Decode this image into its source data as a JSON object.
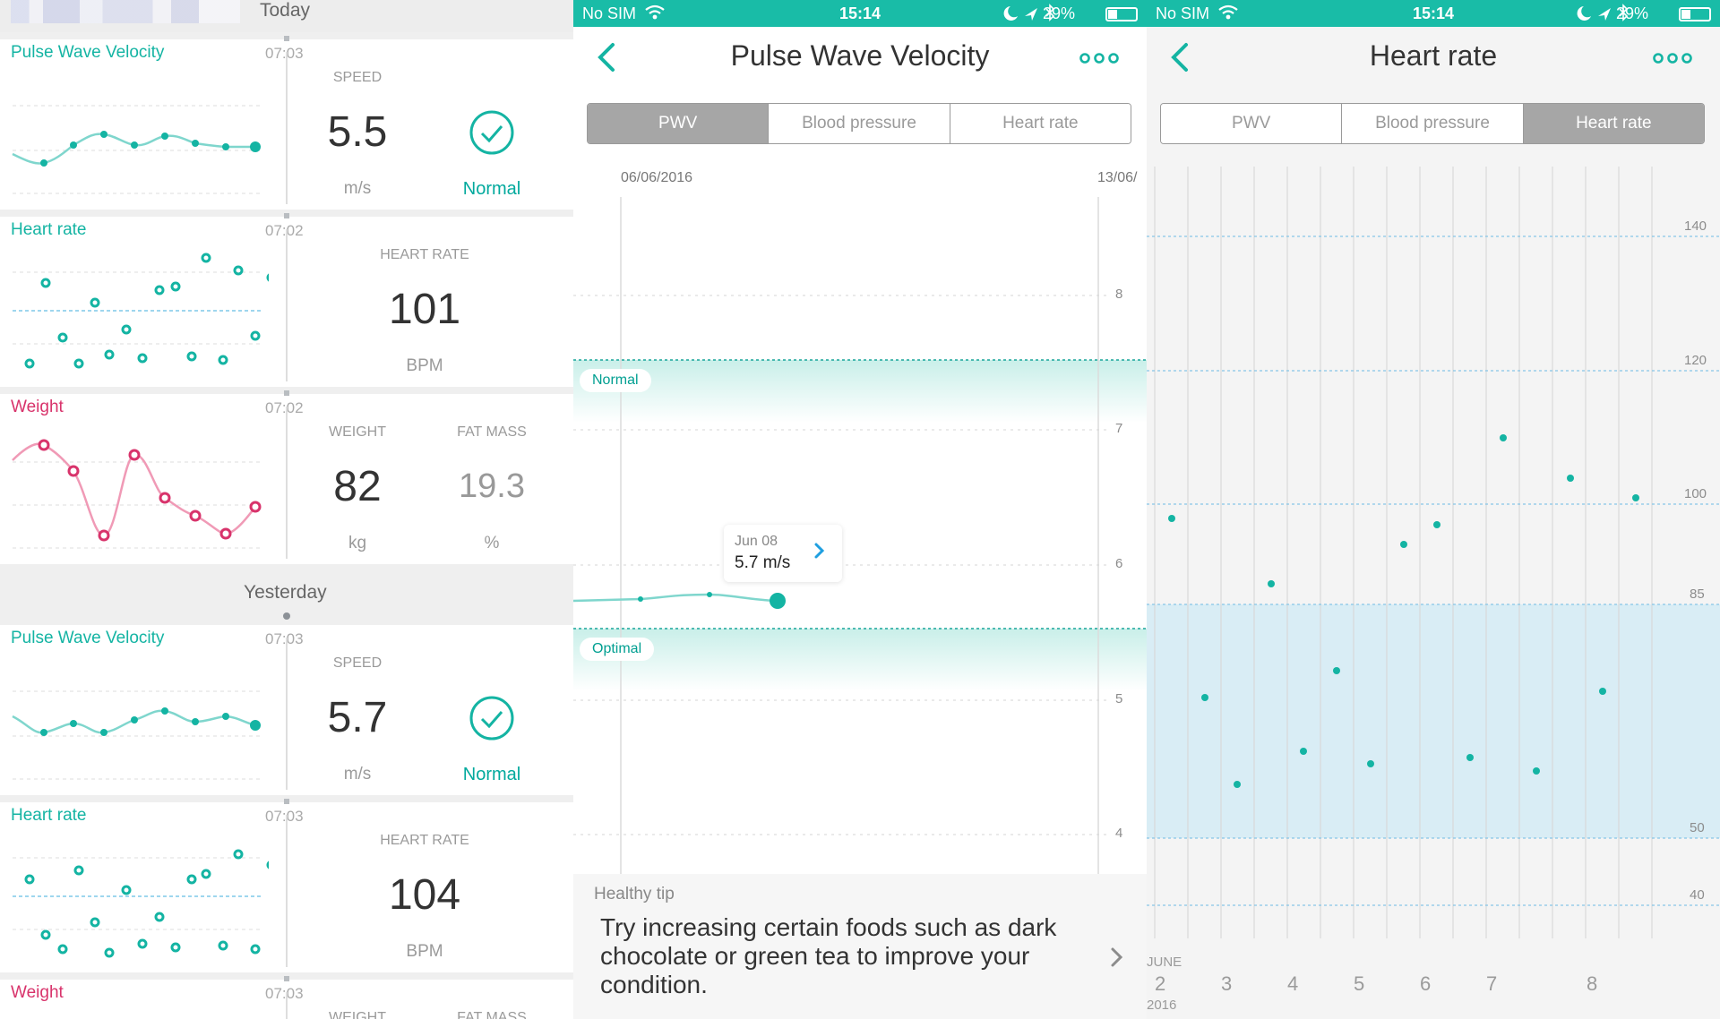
{
  "feed": {
    "today_label": "Today",
    "yesterday_label": "Yesterday",
    "cards": [
      {
        "title": "Pulse Wave Velocity",
        "time": "07:03",
        "metric1_label": "SPEED",
        "metric1_value": "5.5",
        "metric1_unit": "m/s",
        "status": "Normal"
      },
      {
        "title": "Heart rate",
        "time": "07:02",
        "metric1_label": "HEART RATE",
        "metric1_value": "101",
        "metric1_unit": "BPM"
      },
      {
        "title": "Weight",
        "time": "07:02",
        "metric1_label": "WEIGHT",
        "metric1_value": "82",
        "metric1_unit": "kg",
        "metric2_label": "FAT MASS",
        "metric2_value": "19.3",
        "metric2_unit": "%"
      },
      {
        "title": "Pulse Wave Velocity",
        "time": "07:03",
        "metric1_label": "SPEED",
        "metric1_value": "5.7",
        "metric1_unit": "m/s",
        "status": "Normal"
      },
      {
        "title": "Heart rate",
        "time": "07:03",
        "metric1_label": "HEART RATE",
        "metric1_value": "104",
        "metric1_unit": "BPM"
      },
      {
        "title": "Weight",
        "time": "07:03",
        "metric1_label": "WEIGHT",
        "metric2_label": "FAT MASS"
      }
    ]
  },
  "status_bar": {
    "carrier": "No SIM",
    "time": "15:14",
    "battery": "29%"
  },
  "pwv_screen": {
    "title": "Pulse Wave Velocity",
    "tabs": [
      "PWV",
      "Blood pressure",
      "Heart rate"
    ],
    "active_tab": 0,
    "date_start": "06/06/2016",
    "date_end": "13/06/",
    "zone_normal": "Normal",
    "zone_optimal": "Optimal",
    "tooltip_date": "Jun 08",
    "tooltip_value": "5.7 m/s",
    "y_ticks": [
      "8",
      "7",
      "6",
      "5",
      "4"
    ],
    "tip_heading": "Healthy tip",
    "tip_text": "Try increasing certain foods such as dark chocolate or green tea to improve your condition."
  },
  "hr_screen": {
    "title": "Heart rate",
    "tabs": [
      "PWV",
      "Blood pressure",
      "Heart rate"
    ],
    "active_tab": 2,
    "y_ticks": [
      "140",
      "120",
      "100",
      "85",
      "50",
      "40"
    ],
    "x_month": "JUNE",
    "x_year": "2016",
    "x_days": [
      "2",
      "3",
      "4",
      "5",
      "6",
      "7",
      "8"
    ]
  },
  "colors": {
    "accent": "#14b4a3",
    "weight": "#d8336b",
    "status_bar": "#19bca7",
    "normal_band": "#d9edf5"
  }
}
